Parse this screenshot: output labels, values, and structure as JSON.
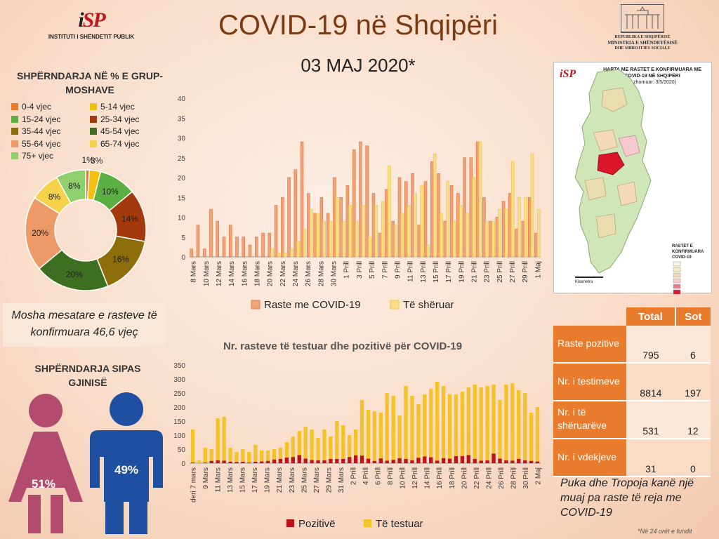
{
  "header": {
    "title": "COVID-19 në Shqipëri",
    "date": "03 MAJ 2020*",
    "isp_mark_a": "i",
    "isp_mark_b": "SP",
    "isp_name": "INSTITUTI I SHËNDETIT PUBLIK",
    "ministry_lines": [
      "REPUBLIKA E SHQIPËRISË",
      "MINISTRIA E SHËNDETËSISË",
      "DHE MBROJTJES SOCIALE"
    ]
  },
  "age": {
    "heading": "SHPËRNDARJA NË % E GRUP-MOSHAVE",
    "legend": [
      {
        "label": "0-4 vjec",
        "color": "#e87b2c"
      },
      {
        "label": "5-14 vjec",
        "color": "#f2c010"
      },
      {
        "label": "15-24 vjec",
        "color": "#5cb043"
      },
      {
        "label": "25-34 vjec",
        "color": "#a33a0e"
      },
      {
        "label": "35-44 vjec",
        "color": "#8c6d0a"
      },
      {
        "label": "45-54 vjec",
        "color": "#3e6e22"
      },
      {
        "label": "55-64 vjec",
        "color": "#ec9b68"
      },
      {
        "label": "65-74 vjec",
        "color": "#f5d24a"
      },
      {
        "label": "75+ vjec",
        "color": "#8fcf6c"
      }
    ]
  },
  "mosha_note": "Mosha mesatare e rasteve të konfirmuara 46,6 vjeç",
  "gender": {
    "heading": "SHPËRNDARJA SIPAS GJINISË",
    "female_pct": "51%",
    "male_pct": "49%",
    "female_color": "#b24b6e",
    "male_color": "#1f4fa0"
  },
  "map": {
    "title": "HARTA ME RASTET E KONFIRMUARA ME COVID-19 NË SHQIPËRI",
    "updated": "(Azhornuar: 3/5/2020)",
    "legend_title": "RASTET E KONFIRMUARA",
    "legend_sub": "COVID-19",
    "scale_label": "Kilometra"
  },
  "table": {
    "headers": [
      "",
      "Total",
      "Sot"
    ],
    "rows": [
      {
        "label": "Raste pozitive",
        "total": "795",
        "sot": "6"
      },
      {
        "label": "Nr. i testimeve",
        "total": "8814",
        "sot": "197"
      },
      {
        "label": "Nr. i të shëruarëve",
        "total": "531",
        "sot": "12"
      },
      {
        "label": "Nr. i vdekjeve",
        "total": "31",
        "sot": "0"
      }
    ]
  },
  "note": "Puka dhe Tropoja kanë një muaj pa raste të reja me COVID-19",
  "footnote": "*Në 24 orët e fundit",
  "chart_data": [
    {
      "type": "pie",
      "labels": [
        "0-4 vjec",
        "5-14 vjec",
        "15-24 vjec",
        "25-34 vjec",
        "35-44 vjec",
        "45-54 vjec",
        "55-64 vjec",
        "65-74 vjec",
        "75+ vjec"
      ],
      "values": [
        1,
        3,
        10,
        14,
        16,
        20,
        20,
        8,
        8
      ],
      "value_labels": [
        "1%",
        "3%",
        "10%",
        "14%",
        "16%",
        "20%",
        "20%",
        "8%",
        "8%"
      ],
      "colors": [
        "#e87b2c",
        "#f2c010",
        "#5cb043",
        "#a33a0e",
        "#8c6d0a",
        "#3e6e22",
        "#ec9b68",
        "#f5d24a",
        "#8fcf6c"
      ]
    },
    {
      "type": "bar",
      "title": "",
      "ylim": [
        0,
        40
      ],
      "yticks": [
        0,
        5,
        10,
        15,
        20,
        25,
        30,
        35,
        40
      ],
      "x_tick_labels": [
        "8 Mars",
        "10 Mars",
        "12 Mars",
        "14 Mars",
        "16 Mars",
        "18 Mars",
        "20 Mars",
        "22 Mars",
        "24 Mars",
        "26 Mars",
        "28 Mars",
        "30 Mars",
        "1 Prill",
        "3 Prill",
        "5 Prill",
        "7 Prill",
        "9 Prill",
        "11 Prill",
        "13 Prill",
        "15 Prill",
        "17 Prill",
        "19 Prill",
        "21 Prill",
        "23 Prill",
        "25 Prill",
        "27 Prill",
        "29 Prill",
        "1 Maj"
      ],
      "series": [
        {
          "name": "Raste me COVID-19",
          "color": "#f0a37a",
          "stroke": "#e07030",
          "values": [
            2,
            8,
            2,
            12,
            9,
            5,
            8,
            5,
            5,
            3,
            5,
            6,
            6,
            13,
            15,
            20,
            22,
            29,
            16,
            11,
            15,
            11,
            20,
            15,
            18,
            27,
            29,
            28,
            16,
            6,
            17,
            9,
            20,
            19,
            21,
            8,
            19,
            24,
            21,
            9,
            18,
            16,
            25,
            25,
            29,
            15,
            9,
            10,
            14,
            16,
            7,
            9,
            15,
            6
          ]
        },
        {
          "name": "Të shëruar",
          "color": "#f9de86",
          "stroke": "#e8c040",
          "values": [
            0,
            0,
            0,
            0,
            0,
            0,
            0,
            0,
            0,
            0,
            0,
            0,
            2,
            1,
            1,
            2,
            4,
            7,
            12,
            11,
            9,
            9,
            15,
            9,
            13,
            9,
            13,
            5,
            13,
            14,
            23,
            8,
            11,
            13,
            16,
            18,
            3,
            26,
            11,
            19,
            9,
            13,
            11,
            20,
            29,
            9,
            9,
            12,
            12,
            24,
            15,
            15,
            26,
            12
          ]
        }
      ]
    },
    {
      "type": "bar",
      "title": "Nr. rasteve të testuar dhe pozitivë për COVID-19",
      "ylim": [
        0,
        350
      ],
      "yticks": [
        0,
        50,
        100,
        150,
        200,
        250,
        300,
        350
      ],
      "x_tick_labels": [
        "deri 7 mars",
        "9 Mars",
        "11 Mars",
        "13 Mars",
        "15 Mars",
        "17 Mars",
        "19 Mars",
        "21 Mars",
        "23 Mars",
        "25 Mars",
        "27 Mars",
        "29 Mars",
        "31 Mars",
        "2 Prill",
        "4 Prill",
        "6 Prill",
        "8 Prill",
        "10 Prill",
        "12 Prill",
        "14 Prill",
        "16 Prill",
        "18 Prill",
        "20 Prill",
        "22 Prill",
        "24 Prill",
        "26 Prill",
        "28 Prill",
        "30 Prill",
        "2 Maj"
      ],
      "series": [
        {
          "name": "Pozitivë",
          "color": "#c0101a",
          "values": [
            2,
            0,
            2,
            8,
            10,
            9,
            5,
            4,
            5,
            2,
            5,
            6,
            8,
            13,
            15,
            20,
            22,
            29,
            16,
            11,
            10,
            10,
            15,
            15,
            15,
            22,
            28,
            27,
            16,
            8,
            17,
            9,
            12,
            18,
            15,
            10,
            19,
            24,
            21,
            9,
            18,
            16,
            25,
            25,
            29,
            15,
            9,
            10,
            34,
            16,
            10,
            9,
            15,
            10,
            8,
            6
          ]
        },
        {
          "name": "Të testuar",
          "color": "#f5c22a",
          "values": [
            120,
            10,
            55,
            50,
            160,
            165,
            55,
            40,
            50,
            40,
            65,
            45,
            45,
            50,
            55,
            75,
            95,
            115,
            130,
            120,
            90,
            120,
            95,
            150,
            135,
            100,
            120,
            225,
            190,
            185,
            180,
            250,
            240,
            170,
            275,
            240,
            210,
            245,
            265,
            290,
            275,
            245,
            245,
            255,
            270,
            280,
            270,
            275,
            280,
            225,
            280,
            285,
            260,
            250,
            180,
            200
          ]
        }
      ]
    }
  ]
}
